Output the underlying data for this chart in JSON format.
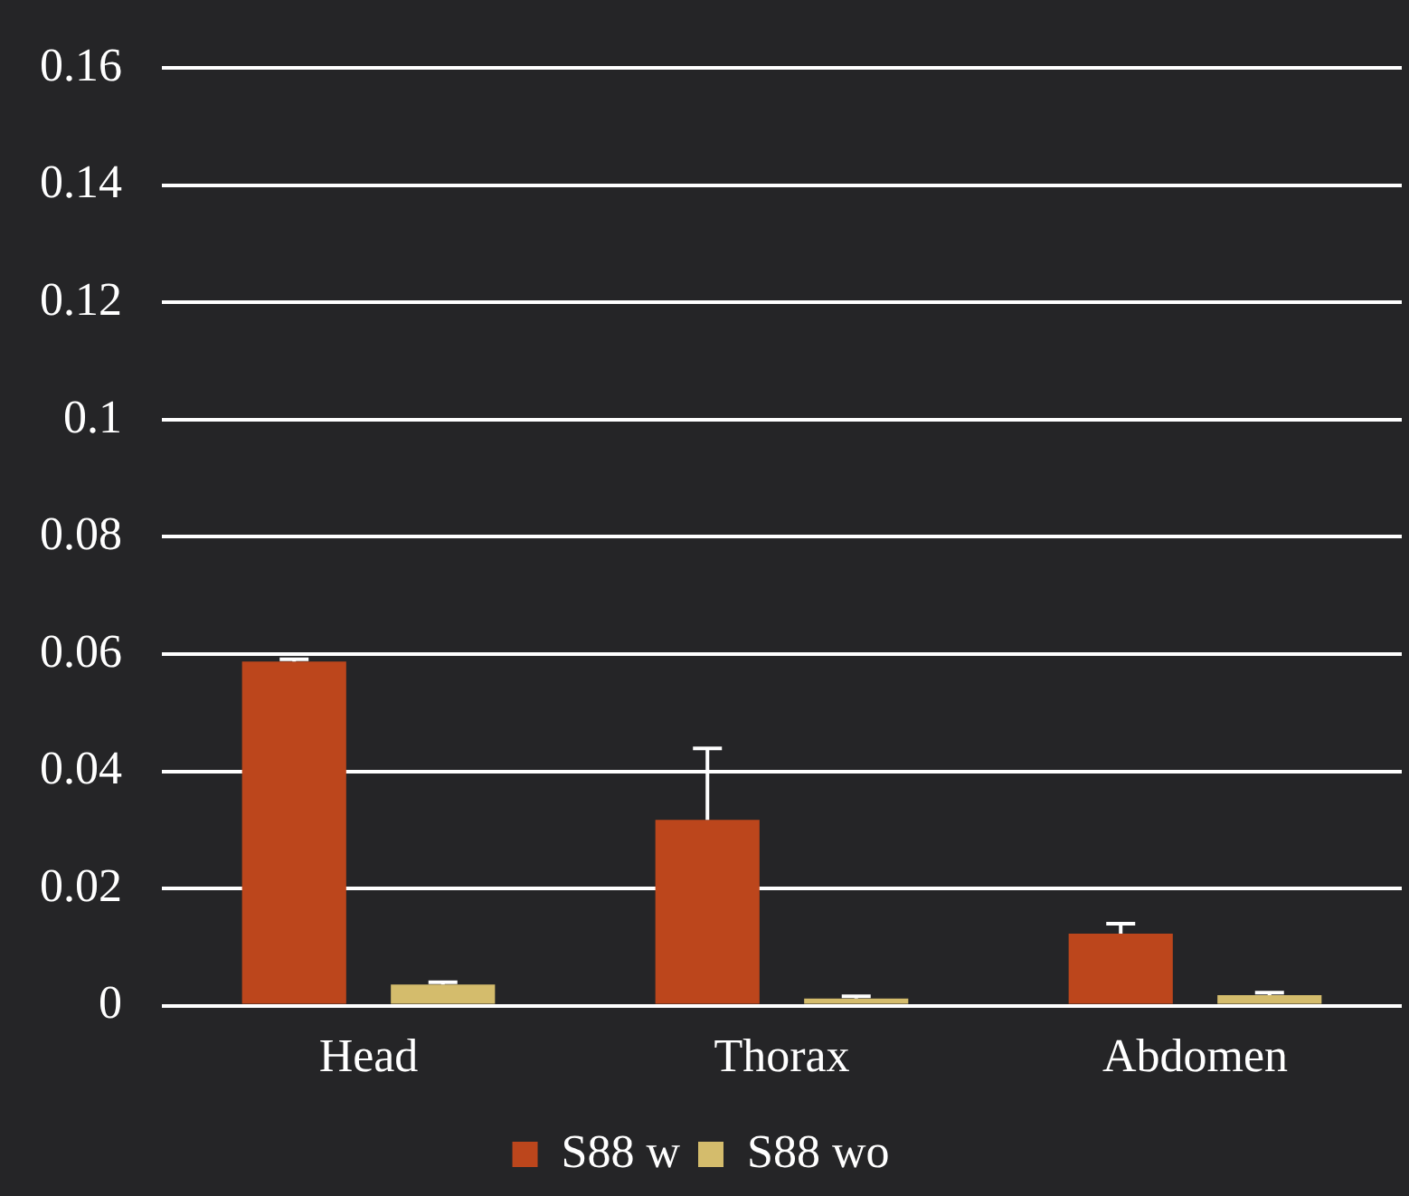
{
  "chart_data": {
    "type": "bar",
    "categories": [
      "Head",
      "Thorax",
      "Abdomen"
    ],
    "series": [
      {
        "name": "S88 w",
        "color": "#bc461c",
        "values": [
          0.0587,
          0.0317,
          0.0123
        ],
        "errors": [
          [
            0.0587,
            0.0591
          ],
          [
            0.0317,
            0.0439
          ],
          [
            0.0123,
            0.014
          ]
        ]
      },
      {
        "name": "S88 wo",
        "color": "#d4bc6c",
        "values": [
          0.0036,
          0.0012,
          0.0018
        ],
        "errors": [
          [
            0.0036,
            0.004
          ],
          [
            0.0012,
            0.0016
          ],
          [
            0.0018,
            0.0022
          ]
        ]
      }
    ],
    "ylim": [
      0,
      0.16
    ],
    "yticks": [
      0,
      0.02,
      0.04,
      0.06,
      0.08,
      0.1,
      0.12,
      0.14,
      0.16
    ],
    "grid": "y",
    "legend": "bottom"
  }
}
